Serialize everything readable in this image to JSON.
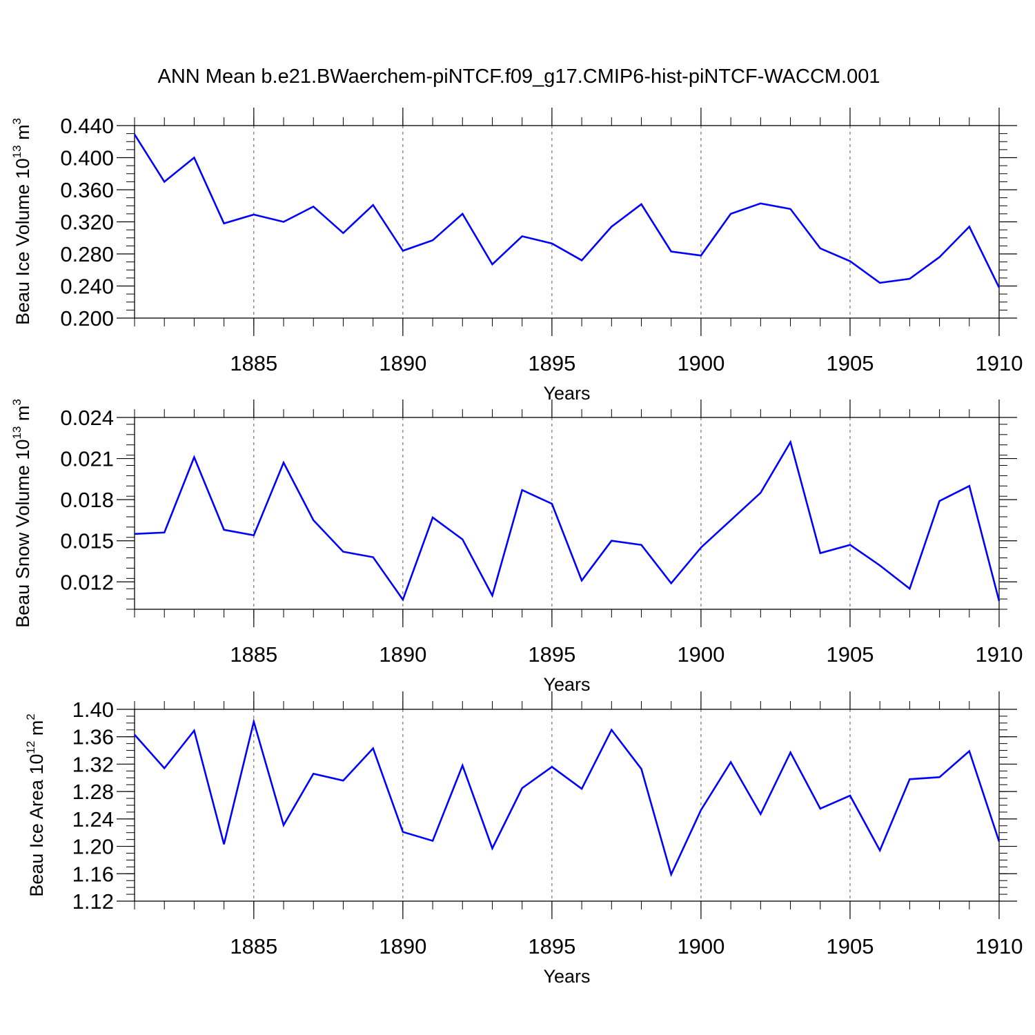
{
  "figure": {
    "title": "ANN Mean b.e21.BWaerchem-piNTCF.f09_g17.CMIP6-hist-piNTCF-WACCM.001"
  },
  "chart_data": [
    {
      "type": "line",
      "ylabel": {
        "main": "Beau Ice Volume 10",
        "exp": "13",
        "mid": " m",
        "exp2": "3"
      },
      "xlabel": "Years",
      "xlim": [
        1881,
        1910
      ],
      "ylim": [
        0.2,
        0.44
      ],
      "yticks": [
        0.2,
        0.24,
        0.28,
        0.32,
        0.36,
        0.4,
        0.44
      ],
      "ytick_labels": [
        "0.200",
        "0.240",
        "0.280",
        "0.320",
        "0.360",
        "0.400",
        "0.440"
      ],
      "xticks": [
        1885,
        1890,
        1895,
        1900,
        1905,
        1910
      ],
      "xtick_labels": [
        "1885",
        "1890",
        "1895",
        "1900",
        "1905",
        "1910"
      ],
      "grid": "vertical dashed at labeled years",
      "series": [
        {
          "color": "#0000ff",
          "x": [
            1881,
            1882,
            1883,
            1884,
            1885,
            1886,
            1887,
            1888,
            1889,
            1890,
            1891,
            1892,
            1893,
            1894,
            1895,
            1896,
            1897,
            1898,
            1899,
            1900,
            1901,
            1902,
            1903,
            1904,
            1905,
            1906,
            1907,
            1908,
            1909,
            1910
          ],
          "y": [
            0.429,
            0.37,
            0.4,
            0.318,
            0.329,
            0.32,
            0.339,
            0.306,
            0.341,
            0.284,
            0.297,
            0.33,
            0.267,
            0.302,
            0.293,
            0.272,
            0.314,
            0.342,
            0.283,
            0.278,
            0.33,
            0.343,
            0.336,
            0.287,
            0.271,
            0.244,
            0.249,
            0.276,
            0.314,
            0.238
          ]
        }
      ]
    },
    {
      "type": "line",
      "ylabel": {
        "main": "Beau Snow Volume 10",
        "exp": "13",
        "mid": " m",
        "exp2": "3"
      },
      "xlabel": "Years",
      "xlim": [
        1881,
        1910
      ],
      "ylim": [
        0.01,
        0.024
      ],
      "yticks": [
        0.012,
        0.015,
        0.018,
        0.021,
        0.024
      ],
      "ytick_labels": [
        "0.012",
        "0.015",
        "0.018",
        "0.021",
        "0.024"
      ],
      "xticks": [
        1885,
        1890,
        1895,
        1900,
        1905,
        1910
      ],
      "xtick_labels": [
        "1885",
        "1890",
        "1895",
        "1900",
        "1905",
        "1910"
      ],
      "grid": "vertical dashed at labeled years",
      "series": [
        {
          "color": "#0000ff",
          "x": [
            1881,
            1882,
            1883,
            1884,
            1885,
            1886,
            1887,
            1888,
            1889,
            1890,
            1891,
            1892,
            1893,
            1894,
            1895,
            1896,
            1897,
            1898,
            1899,
            1900,
            1901,
            1902,
            1903,
            1904,
            1905,
            1906,
            1907,
            1908,
            1909,
            1910
          ],
          "y": [
            0.0155,
            0.0156,
            0.0211,
            0.0158,
            0.0154,
            0.0207,
            0.0165,
            0.0142,
            0.0138,
            0.0107,
            0.0167,
            0.0151,
            0.011,
            0.0187,
            0.0177,
            0.0121,
            0.015,
            0.0147,
            0.0119,
            0.0145,
            0.0165,
            0.0185,
            0.0222,
            0.0141,
            0.0147,
            0.0132,
            0.0115,
            0.0179,
            0.019,
            0.0106
          ]
        }
      ]
    },
    {
      "type": "line",
      "ylabel": {
        "main": "Beau Ice Area 10",
        "exp": "12",
        "mid": " m",
        "exp2": "2"
      },
      "xlabel": "Years",
      "xlim": [
        1881,
        1910
      ],
      "ylim": [
        1.12,
        1.4
      ],
      "yticks": [
        1.12,
        1.16,
        1.2,
        1.24,
        1.28,
        1.32,
        1.36,
        1.4
      ],
      "ytick_labels": [
        "1.12",
        "1.16",
        "1.20",
        "1.24",
        "1.28",
        "1.32",
        "1.36",
        "1.40"
      ],
      "xticks": [
        1885,
        1890,
        1895,
        1900,
        1905,
        1910
      ],
      "xtick_labels": [
        "1885",
        "1890",
        "1895",
        "1900",
        "1905",
        "1910"
      ],
      "grid": "vertical dashed at labeled years",
      "series": [
        {
          "color": "#0000ff",
          "x": [
            1881,
            1882,
            1883,
            1884,
            1885,
            1886,
            1887,
            1888,
            1889,
            1890,
            1891,
            1892,
            1893,
            1894,
            1895,
            1896,
            1897,
            1898,
            1899,
            1900,
            1901,
            1902,
            1903,
            1904,
            1905,
            1906,
            1907,
            1908,
            1909,
            1910
          ],
          "y": [
            1.363,
            1.314,
            1.369,
            1.203,
            1.382,
            1.231,
            1.306,
            1.296,
            1.343,
            1.221,
            1.208,
            1.318,
            1.197,
            1.285,
            1.316,
            1.284,
            1.37,
            1.313,
            1.159,
            1.253,
            1.323,
            1.247,
            1.337,
            1.255,
            1.274,
            1.194,
            1.298,
            1.301,
            1.339,
            1.207
          ]
        }
      ]
    }
  ]
}
